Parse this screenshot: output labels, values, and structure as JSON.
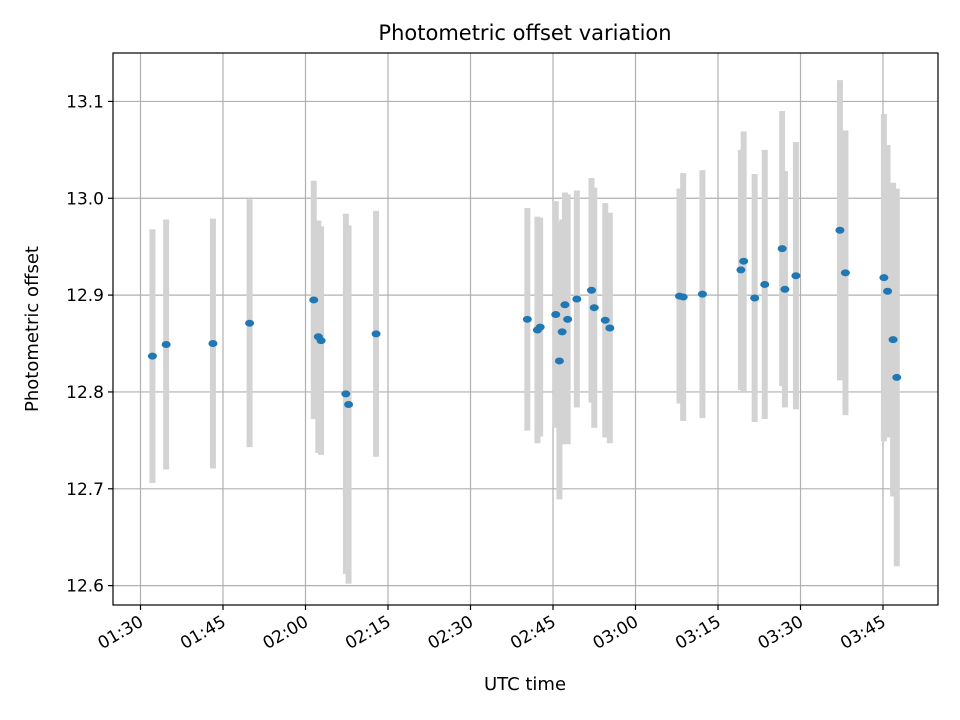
{
  "chart_data": {
    "type": "scatter",
    "title": "Photometric offset variation",
    "xlabel": "UTC time",
    "ylabel": "Photometric offset",
    "x_ticks": [
      "01:30",
      "01:45",
      "02:00",
      "02:15",
      "02:30",
      "02:45",
      "03:00",
      "03:15",
      "03:30",
      "03:45"
    ],
    "y_ticks": [
      "12.6",
      "12.7",
      "12.8",
      "12.9",
      "13.0",
      "13.1"
    ],
    "xlim": [
      "01:25",
      "03:55"
    ],
    "ylim": [
      12.58,
      13.15
    ],
    "grid": true,
    "colors": {
      "points": "#1f77b4",
      "errorbars": "#d3d3d3",
      "grid": "#b0b0b0"
    },
    "points": [
      {
        "x": "01:32:10",
        "y": 12.837,
        "err": 0.131
      },
      {
        "x": "01:34:40",
        "y": 12.849,
        "err": 0.129
      },
      {
        "x": "01:43:10",
        "y": 12.85,
        "err": 0.129
      },
      {
        "x": "01:49:50",
        "y": 12.871,
        "err": 0.128
      },
      {
        "x": "02:01:30",
        "y": 12.895,
        "err": 0.123
      },
      {
        "x": "02:02:20",
        "y": 12.857,
        "err": 0.12
      },
      {
        "x": "02:02:50",
        "y": 12.853,
        "err": 0.118
      },
      {
        "x": "02:07:20",
        "y": 12.798,
        "err": 0.186
      },
      {
        "x": "02:07:50",
        "y": 12.787,
        "err": 0.185
      },
      {
        "x": "02:12:50",
        "y": 12.86,
        "err": 0.127
      },
      {
        "x": "02:40:20",
        "y": 12.875,
        "err": 0.115
      },
      {
        "x": "02:42:10",
        "y": 12.864,
        "err": 0.117
      },
      {
        "x": "02:42:40",
        "y": 12.867,
        "err": 0.113
      },
      {
        "x": "02:45:30",
        "y": 12.88,
        "err": 0.117
      },
      {
        "x": "02:46:10",
        "y": 12.832,
        "err": 0.143
      },
      {
        "x": "02:46:40",
        "y": 12.862,
        "err": 0.116
      },
      {
        "x": "02:47:10",
        "y": 12.89,
        "err": 0.116
      },
      {
        "x": "02:47:40",
        "y": 12.875,
        "err": 0.129
      },
      {
        "x": "02:49:20",
        "y": 12.896,
        "err": 0.112
      },
      {
        "x": "02:52:00",
        "y": 12.905,
        "err": 0.116
      },
      {
        "x": "02:52:30",
        "y": 12.887,
        "err": 0.124
      },
      {
        "x": "02:54:30",
        "y": 12.874,
        "err": 0.121
      },
      {
        "x": "02:55:20",
        "y": 12.866,
        "err": 0.119
      },
      {
        "x": "03:08:00",
        "y": 12.899,
        "err": 0.111
      },
      {
        "x": "03:08:40",
        "y": 12.898,
        "err": 0.128
      },
      {
        "x": "03:12:10",
        "y": 12.901,
        "err": 0.128
      },
      {
        "x": "03:19:10",
        "y": 12.926,
        "err": 0.124
      },
      {
        "x": "03:19:40",
        "y": 12.935,
        "err": 0.134
      },
      {
        "x": "03:21:40",
        "y": 12.897,
        "err": 0.128
      },
      {
        "x": "03:23:30",
        "y": 12.911,
        "err": 0.139
      },
      {
        "x": "03:26:40",
        "y": 12.948,
        "err": 0.142
      },
      {
        "x": "03:27:10",
        "y": 12.906,
        "err": 0.122
      },
      {
        "x": "03:29:10",
        "y": 12.92,
        "err": 0.138
      },
      {
        "x": "03:37:10",
        "y": 12.967,
        "err": 0.155
      },
      {
        "x": "03:38:10",
        "y": 12.923,
        "err": 0.147
      },
      {
        "x": "03:45:10",
        "y": 12.918,
        "err": 0.169
      },
      {
        "x": "03:45:50",
        "y": 12.904,
        "err": 0.151
      },
      {
        "x": "03:46:50",
        "y": 12.854,
        "err": 0.162
      },
      {
        "x": "03:47:30",
        "y": 12.815,
        "err": 0.195
      }
    ]
  }
}
